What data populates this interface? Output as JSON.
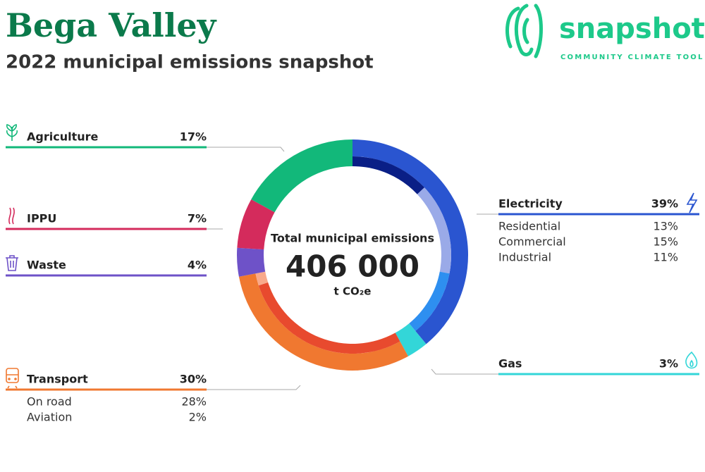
{
  "chart_data": {
    "type": "donut",
    "title": "Bega Valley",
    "subtitle": "2022 municipal emissions snapshot",
    "center_label": "Total municipal emissions",
    "total": {
      "value": 406000,
      "label": "406 000"
    },
    "unit": "t CO₂e",
    "series": [
      {
        "name": "Electricity",
        "color": "#2a55d0",
        "value": 39,
        "value_label": "39%",
        "breakdown": [
          {
            "name": "Residential",
            "color": "#0a1f86",
            "value": 13,
            "value_label": "13%"
          },
          {
            "name": "Commercial",
            "color": "#9aaae8",
            "value": 15,
            "value_label": "15%"
          },
          {
            "name": "Industrial",
            "color": "#2e8ff0",
            "value": 11,
            "value_label": "11%"
          }
        ]
      },
      {
        "name": "Gas",
        "color": "#33d6d8",
        "value": 3,
        "value_label": "3%"
      },
      {
        "name": "Transport",
        "color": "#f07830",
        "value": 30,
        "value_label": "30%",
        "breakdown": [
          {
            "name": "On road",
            "color": "#e84a2e",
            "value": 28,
            "value_label": "28%"
          },
          {
            "name": "Aviation",
            "color": "#f9a98a",
            "value": 2,
            "value_label": "2%"
          }
        ]
      },
      {
        "name": "Waste",
        "color": "#6e52c8",
        "value": 4,
        "value_label": "4%"
      },
      {
        "name": "IPPU",
        "color": "#d42b5c",
        "value": 7,
        "value_label": "7%"
      },
      {
        "name": "Agriculture",
        "color": "#12b87a",
        "value": 17,
        "value_label": "17%"
      }
    ]
  },
  "brand": {
    "name": "snapshot",
    "tagline": "COMMUNITY CLIMATE TOOL"
  }
}
